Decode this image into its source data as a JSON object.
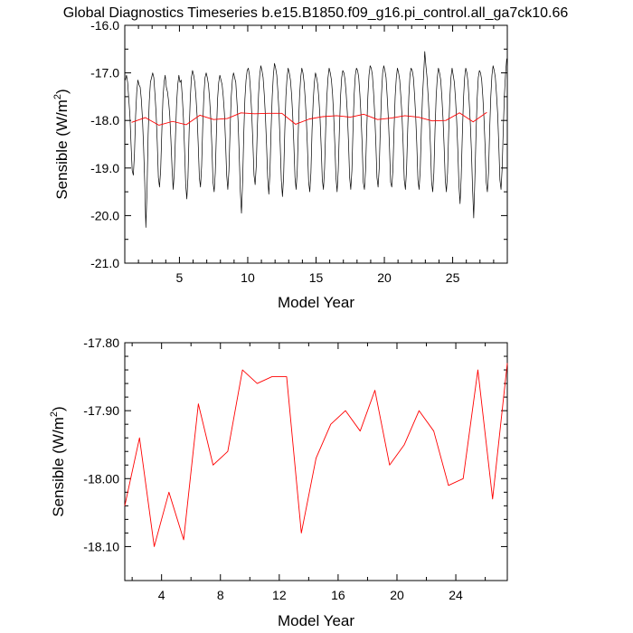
{
  "figure": {
    "title": "Global Diagnostics Timeseries b.e15.B1850.f09_g16.pi_control.all_ga7ck10.66"
  },
  "colors": {
    "monthly_line": "#000000",
    "annual_line": "#ff0000",
    "axes": "#000000"
  },
  "chart_data": [
    {
      "type": "line",
      "ylabel": "Sensible (W/m²)",
      "ylabel_base": "Sensible (W/m",
      "ylabel_sup": "2",
      "ylabel_close": ")",
      "xlabel": "Model Year",
      "xlim": [
        1,
        29
      ],
      "ylim": [
        -21.0,
        -16.0
      ],
      "x_ticks": [
        5,
        10,
        15,
        20,
        25
      ],
      "x_tick_labels": [
        "5",
        "10",
        "15",
        "20",
        "25"
      ],
      "y_ticks": [
        -21.0,
        -20.0,
        -19.0,
        -18.0,
        -17.0,
        -16.0
      ],
      "y_tick_labels": [
        "-21.0",
        "-20.0",
        "-19.0",
        "-18.0",
        "-17.0",
        "-16.0"
      ],
      "grid": false,
      "series": [
        {
          "style": "monthly",
          "color": "#000000",
          "start_x": 1.0417,
          "step": 0.083333,
          "values": [
            -17.15,
            -17.05,
            -17.2,
            -17.55,
            -17.9,
            -18.5,
            -19.05,
            -19.15,
            -18.7,
            -17.9,
            -17.4,
            -17.15,
            -17.25,
            -17.3,
            -17.55,
            -17.95,
            -18.55,
            -19.3,
            -20.25,
            -19.5,
            -18.3,
            -17.6,
            -17.2,
            -17.1,
            -17.0,
            -17.1,
            -17.45,
            -17.85,
            -18.45,
            -19.2,
            -19.4,
            -19.05,
            -18.25,
            -17.55,
            -17.2,
            -17.05,
            -17.3,
            -17.4,
            -17.6,
            -17.9,
            -18.4,
            -19.0,
            -19.45,
            -19.1,
            -18.35,
            -17.65,
            -17.25,
            -17.05,
            -17.2,
            -17.15,
            -17.5,
            -17.95,
            -18.6,
            -19.35,
            -19.65,
            -19.2,
            -18.25,
            -17.55,
            -17.1,
            -16.95,
            -17.05,
            -17.2,
            -17.5,
            -17.9,
            -18.5,
            -19.2,
            -19.4,
            -18.95,
            -18.1,
            -17.45,
            -17.1,
            -17.0,
            -17.1,
            -17.25,
            -17.55,
            -17.95,
            -18.55,
            -19.3,
            -19.5,
            -19.1,
            -18.25,
            -17.55,
            -17.2,
            -17.05,
            -17.15,
            -17.25,
            -17.5,
            -17.85,
            -18.45,
            -19.15,
            -19.45,
            -19.05,
            -18.2,
            -17.5,
            -17.15,
            -17.0,
            -17.1,
            -17.2,
            -17.6,
            -18.0,
            -18.7,
            -19.5,
            -19.95,
            -19.3,
            -18.3,
            -17.55,
            -17.15,
            -16.95,
            -16.9,
            -17.05,
            -17.4,
            -17.85,
            -18.45,
            -19.15,
            -19.35,
            -18.95,
            -18.1,
            -17.45,
            -17.05,
            -16.85,
            -16.95,
            -17.1,
            -17.45,
            -17.9,
            -18.5,
            -19.2,
            -19.55,
            -19.1,
            -18.2,
            -17.5,
            -17.05,
            -16.8,
            -16.9,
            -17.05,
            -17.4,
            -17.85,
            -18.5,
            -19.25,
            -19.6,
            -19.2,
            -18.25,
            -17.5,
            -17.1,
            -16.9,
            -17.0,
            -17.15,
            -17.45,
            -17.9,
            -18.5,
            -19.2,
            -19.45,
            -19.05,
            -18.15,
            -17.5,
            -17.1,
            -16.9,
            -17.0,
            -17.2,
            -17.55,
            -18.0,
            -18.6,
            -19.3,
            -19.5,
            -19.1,
            -18.2,
            -17.6,
            -17.2,
            -17.0,
            -17.1,
            -17.25,
            -17.55,
            -17.95,
            -18.55,
            -19.25,
            -19.45,
            -19.0,
            -18.15,
            -17.5,
            -17.1,
            -16.9,
            -17.0,
            -17.15,
            -17.45,
            -17.9,
            -18.5,
            -19.2,
            -19.5,
            -19.05,
            -18.2,
            -17.5,
            -17.1,
            -16.95,
            -17.0,
            -17.15,
            -17.45,
            -17.85,
            -18.45,
            -19.2,
            -19.45,
            -19.05,
            -18.15,
            -17.45,
            -17.05,
            -16.9,
            -16.95,
            -17.1,
            -17.45,
            -17.9,
            -18.5,
            -19.3,
            -19.45,
            -19.05,
            -18.2,
            -17.5,
            -17.05,
            -16.85,
            -16.9,
            -17.05,
            -17.4,
            -17.85,
            -18.45,
            -19.2,
            -19.4,
            -19.0,
            -18.15,
            -17.45,
            -17.0,
            -16.85,
            -16.95,
            -17.1,
            -17.5,
            -17.95,
            -18.55,
            -19.3,
            -19.4,
            -19.05,
            -18.2,
            -17.5,
            -17.1,
            -16.9,
            -17.0,
            -17.15,
            -17.5,
            -17.9,
            -18.5,
            -19.25,
            -19.45,
            -19.05,
            -18.2,
            -17.5,
            -17.05,
            -16.9,
            -16.95,
            -17.1,
            -17.45,
            -17.9,
            -18.5,
            -19.25,
            -19.45,
            -19.05,
            -18.2,
            -17.5,
            -17.05,
            -16.55,
            -16.85,
            -17.1,
            -17.5,
            -17.95,
            -18.55,
            -19.3,
            -19.5,
            -19.1,
            -18.2,
            -17.5,
            -17.1,
            -16.9,
            -17.0,
            -17.15,
            -17.5,
            -17.95,
            -18.55,
            -19.25,
            -19.5,
            -19.1,
            -18.25,
            -17.55,
            -17.1,
            -16.9,
            -17.05,
            -17.2,
            -17.55,
            -18.0,
            -18.6,
            -19.35,
            -19.75,
            -19.2,
            -18.3,
            -17.55,
            -17.1,
            -16.9,
            -17.0,
            -17.2,
            -17.6,
            -18.05,
            -18.65,
            -19.45,
            -20.05,
            -19.25,
            -18.3,
            -17.55,
            -17.1,
            -16.95,
            -17.0,
            -17.15,
            -17.5,
            -17.95,
            -18.55,
            -19.3,
            -19.5,
            -19.1,
            -18.2,
            -17.5,
            -17.05,
            -16.85,
            -16.95,
            -17.1,
            -17.45,
            -17.85,
            -18.5,
            -19.25,
            -19.45,
            -19.0,
            -18.15,
            -17.45,
            -17.0,
            -16.7
          ]
        },
        {
          "style": "annual",
          "color": "#ff0000",
          "x": [
            1.5,
            2.5,
            3.5,
            4.5,
            5.5,
            6.5,
            7.5,
            8.5,
            9.5,
            10.5,
            11.5,
            12.5,
            13.5,
            14.5,
            15.5,
            16.5,
            17.5,
            18.5,
            19.5,
            20.5,
            21.5,
            22.5,
            23.5,
            24.5,
            25.5,
            26.5,
            27.5
          ],
          "values": [
            -18.04,
            -17.94,
            -18.1,
            -18.02,
            -18.09,
            -17.89,
            -17.98,
            -17.96,
            -17.84,
            -17.86,
            -17.85,
            -17.85,
            -18.08,
            -17.97,
            -17.92,
            -17.9,
            -17.93,
            -17.87,
            -17.98,
            -17.95,
            -17.9,
            -17.93,
            -18.01,
            -18.0,
            -17.84,
            -18.03,
            -17.83
          ]
        }
      ]
    },
    {
      "type": "line",
      "ylabel": "Sensible (W/m²)",
      "ylabel_base": "Sensible (W/m",
      "ylabel_sup": "2",
      "ylabel_close": ")",
      "xlabel": "Model Year",
      "xlim": [
        1.5,
        27.5
      ],
      "ylim": [
        -18.15,
        -17.8
      ],
      "x_ticks": [
        4,
        8,
        12,
        16,
        20,
        24
      ],
      "x_tick_labels": [
        "4",
        "8",
        "12",
        "16",
        "20",
        "24"
      ],
      "y_ticks": [
        -18.1,
        -18.0,
        -17.9,
        -17.8
      ],
      "y_tick_labels": [
        "-18.10",
        "-18.00",
        "-17.90",
        "-17.80"
      ],
      "grid": false,
      "series": [
        {
          "style": "annual",
          "color": "#ff0000",
          "x": [
            1.5,
            2.5,
            3.5,
            4.5,
            5.5,
            6.5,
            7.5,
            8.5,
            9.5,
            10.5,
            11.5,
            12.5,
            13.5,
            14.5,
            15.5,
            16.5,
            17.5,
            18.5,
            19.5,
            20.5,
            21.5,
            22.5,
            23.5,
            24.5,
            25.5,
            26.5,
            27.5
          ],
          "values": [
            -18.04,
            -17.94,
            -18.1,
            -18.02,
            -18.09,
            -17.89,
            -17.98,
            -17.96,
            -17.84,
            -17.86,
            -17.85,
            -17.85,
            -18.08,
            -17.97,
            -17.92,
            -17.9,
            -17.93,
            -17.87,
            -17.98,
            -17.95,
            -17.9,
            -17.93,
            -18.01,
            -18.0,
            -17.84,
            -18.03,
            -17.83
          ]
        }
      ]
    }
  ]
}
